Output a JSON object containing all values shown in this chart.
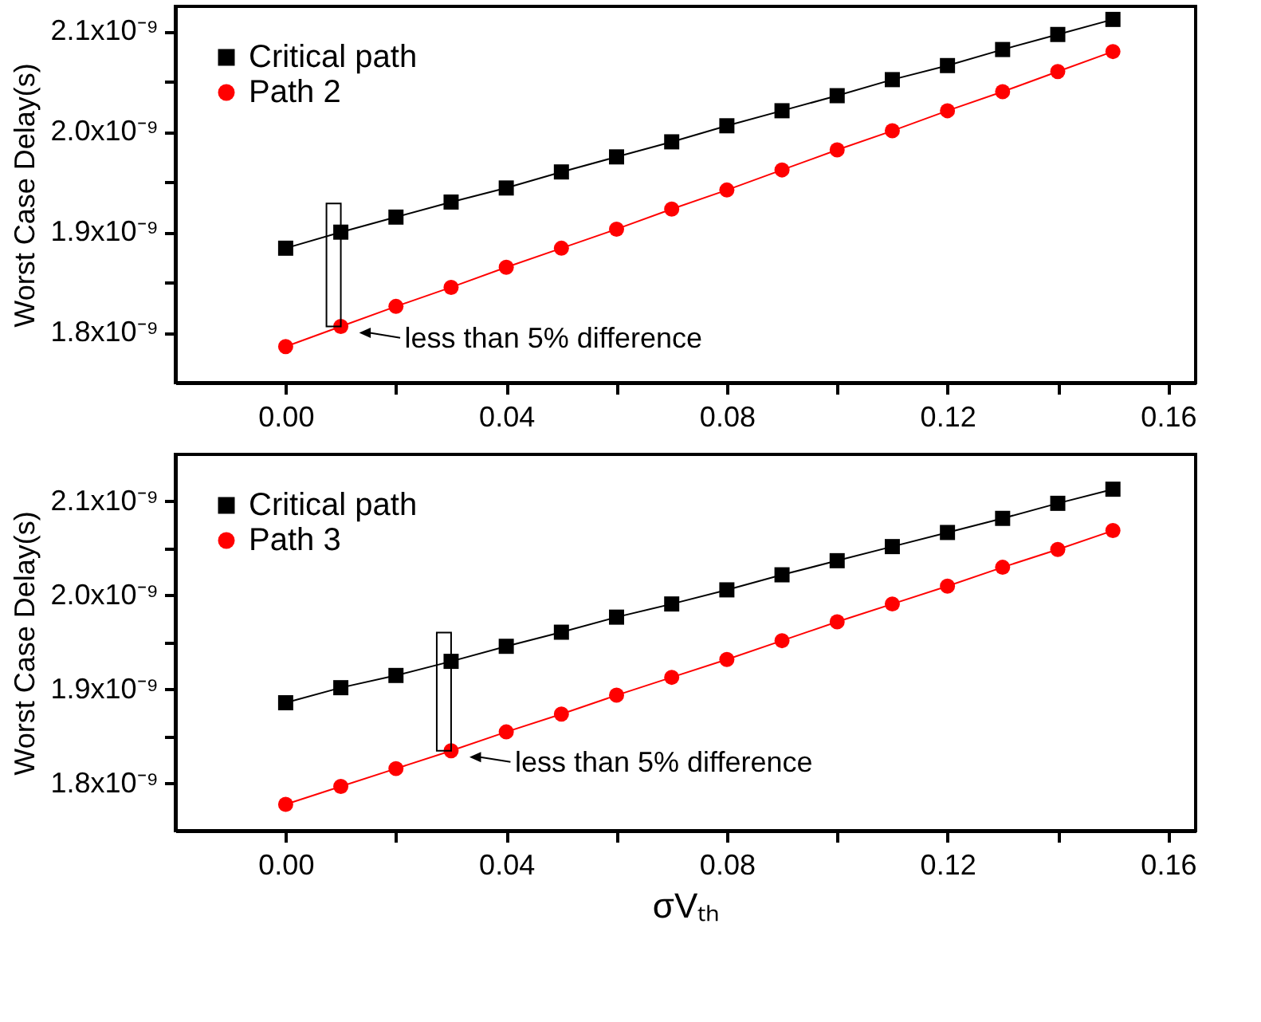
{
  "chart_data": [
    {
      "type": "line",
      "ylabel": "Worst Case Delay(s)",
      "x": [
        0,
        0.01,
        0.02,
        0.03,
        0.04,
        0.05,
        0.06,
        0.07,
        0.08,
        0.09,
        0.1,
        0.11,
        0.12,
        0.13,
        0.14,
        0.15
      ],
      "series": [
        {
          "name": "Critical path",
          "color": "#000000",
          "marker": "square",
          "values": [
            1.884e-09,
            1.9e-09,
            1.915e-09,
            1.93e-09,
            1.944e-09,
            1.96e-09,
            1.975e-09,
            1.99e-09,
            2.006e-09,
            2.021e-09,
            2.036e-09,
            2.052e-09,
            2.066e-09,
            2.082e-09,
            2.097e-09,
            2.112e-09
          ]
        },
        {
          "name": "Path 2",
          "color": "#ff0000",
          "marker": "circle",
          "values": [
            1.786e-09,
            1.806e-09,
            1.826e-09,
            1.845e-09,
            1.865e-09,
            1.884e-09,
            1.903e-09,
            1.923e-09,
            1.942e-09,
            1.962e-09,
            1.982e-09,
            2.001e-09,
            2.021e-09,
            2.04e-09,
            2.06e-09,
            2.08e-09
          ]
        }
      ],
      "xlim": [
        -0.02,
        0.165
      ],
      "xticks": [
        {
          "value": 0,
          "label": "0.00"
        },
        {
          "value": 0.02,
          "label": null
        },
        {
          "value": 0.04,
          "label": "0.04"
        },
        {
          "value": 0.06,
          "label": null
        },
        {
          "value": 0.08,
          "label": "0.08"
        },
        {
          "value": 0.1,
          "label": null
        },
        {
          "value": 0.12,
          "label": "0.12"
        },
        {
          "value": 0.14,
          "label": null
        },
        {
          "value": 0.16,
          "label": "0.16"
        }
      ],
      "ylim": [
        1.75e-09,
        2.125e-09
      ],
      "yticks": [
        {
          "value": 1.8e-09,
          "label": "1.8x10⁻⁹"
        },
        {
          "value": 1.85e-09,
          "label": null
        },
        {
          "value": 1.9e-09,
          "label": "1.9x10⁻⁹"
        },
        {
          "value": 1.95e-09,
          "label": null
        },
        {
          "value": 2e-09,
          "label": "2.0x10⁻⁹"
        },
        {
          "value": 2.05e-09,
          "label": null
        },
        {
          "value": 2.1e-09,
          "label": "2.1x10⁻⁹"
        }
      ],
      "legend": "top left",
      "grid": false,
      "line_style": "solid",
      "annotations": [
        {
          "text": "less than 5% difference",
          "x": 0.01,
          "y": 1.806e-09
        }
      ]
    },
    {
      "type": "line",
      "ylabel": "Worst Case Delay(s)",
      "xlabel": "σVₜₕ",
      "x": [
        0,
        0.01,
        0.02,
        0.03,
        0.04,
        0.05,
        0.06,
        0.07,
        0.08,
        0.09,
        0.1,
        0.11,
        0.12,
        0.13,
        0.14,
        0.15
      ],
      "series": [
        {
          "name": "Critical path",
          "color": "#000000",
          "marker": "square",
          "values": [
            1.886e-09,
            1.902e-09,
            1.915e-09,
            1.93e-09,
            1.946e-09,
            1.961e-09,
            1.977e-09,
            1.991e-09,
            2.006e-09,
            2.022e-09,
            2.037e-09,
            2.052e-09,
            2.067e-09,
            2.082e-09,
            2.098e-09,
            2.113e-09
          ]
        },
        {
          "name": "Path 3",
          "color": "#ff0000",
          "marker": "circle",
          "values": [
            1.778e-09,
            1.797e-09,
            1.816e-09,
            1.835e-09,
            1.855e-09,
            1.874e-09,
            1.894e-09,
            1.913e-09,
            1.932e-09,
            1.952e-09,
            1.972e-09,
            1.991e-09,
            2.01e-09,
            2.03e-09,
            2.049e-09,
            2.069e-09
          ]
        }
      ],
      "xlim": [
        -0.02,
        0.165
      ],
      "xticks": [
        {
          "value": 0,
          "label": "0.00"
        },
        {
          "value": 0.02,
          "label": null
        },
        {
          "value": 0.04,
          "label": "0.04"
        },
        {
          "value": 0.06,
          "label": null
        },
        {
          "value": 0.08,
          "label": "0.08"
        },
        {
          "value": 0.1,
          "label": null
        },
        {
          "value": 0.12,
          "label": "0.12"
        },
        {
          "value": 0.14,
          "label": null
        },
        {
          "value": 0.16,
          "label": "0.16"
        }
      ],
      "ylim": [
        1.75e-09,
        2.15e-09
      ],
      "yticks": [
        {
          "value": 1.8e-09,
          "label": "1.8x10⁻⁹"
        },
        {
          "value": 1.85e-09,
          "label": null
        },
        {
          "value": 1.9e-09,
          "label": "1.9x10⁻⁹"
        },
        {
          "value": 1.95e-09,
          "label": null
        },
        {
          "value": 2e-09,
          "label": "2.0x10⁻⁹"
        },
        {
          "value": 2.05e-09,
          "label": null
        },
        {
          "value": 2.1e-09,
          "label": "2.1x10⁻⁹"
        }
      ],
      "legend": "top left",
      "grid": false,
      "line_style": "solid",
      "annotations": [
        {
          "text": "less than 5% difference",
          "x": 0.03,
          "y": 1.835e-09
        }
      ]
    }
  ]
}
